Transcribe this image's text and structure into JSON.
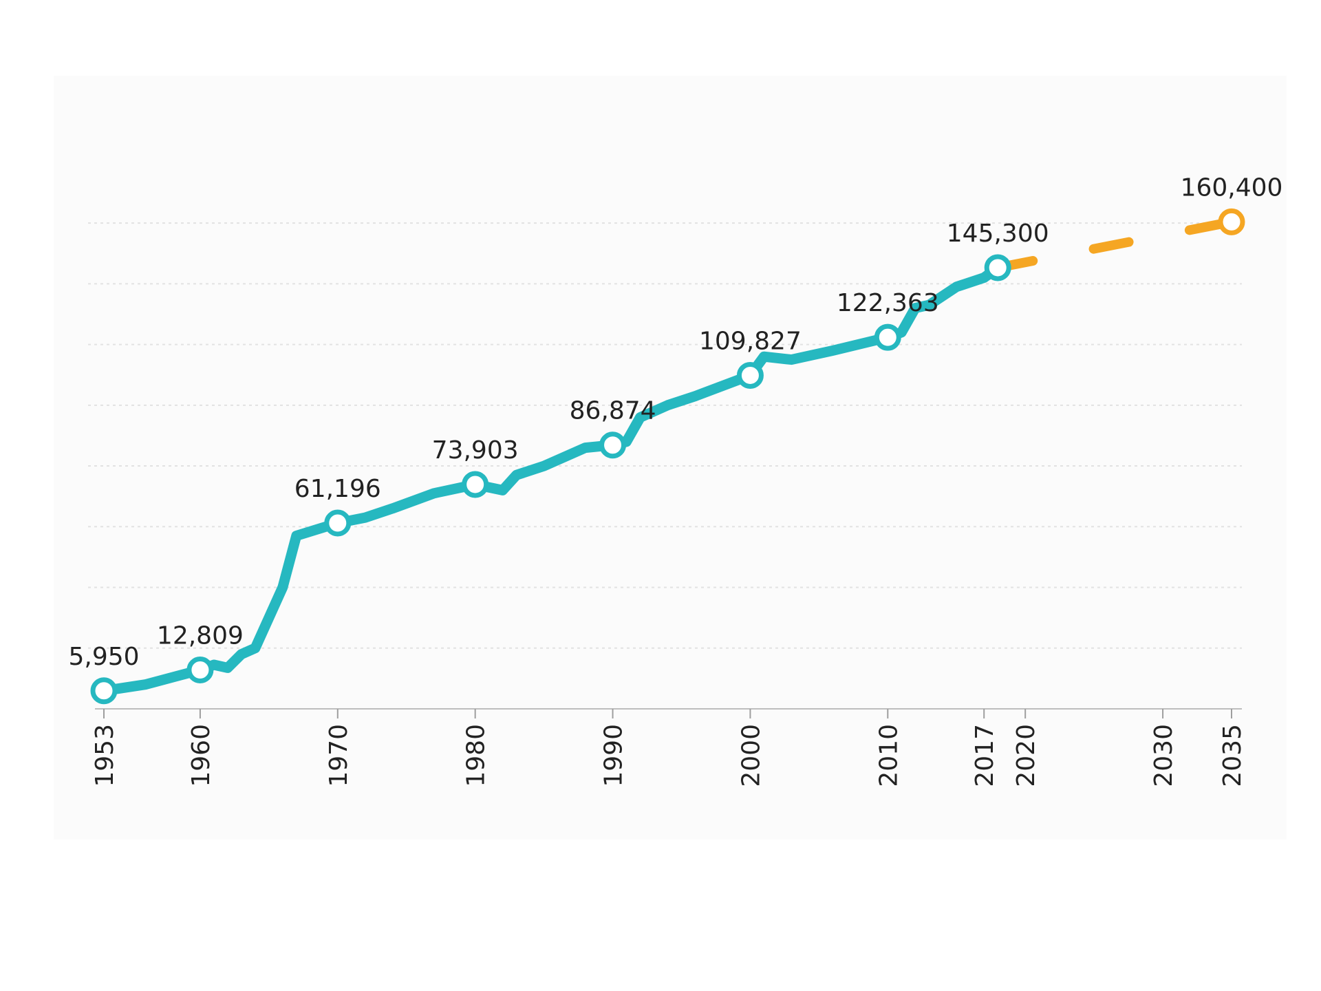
{
  "chart_data": {
    "type": "line",
    "title": "",
    "xlabel": "",
    "ylabel": "",
    "xlim": [
      1953,
      2035
    ],
    "ylim": [
      0,
      170000
    ],
    "grid": true,
    "x_ticks": [
      "1953",
      "1960",
      "1970",
      "1980",
      "1990",
      "2000",
      "2010",
      "2017",
      "2020",
      "2030",
      "2035"
    ],
    "series": [
      {
        "role": "actual",
        "color": "#26b8c0",
        "style": "solid",
        "points": [
          {
            "x": 1953,
            "y": 5950
          },
          {
            "x": 1956,
            "y": 8000
          },
          {
            "x": 1960,
            "y": 12809
          },
          {
            "x": 1961,
            "y": 14500
          },
          {
            "x": 1962,
            "y": 13500
          },
          {
            "x": 1963,
            "y": 18000
          },
          {
            "x": 1964,
            "y": 20000
          },
          {
            "x": 1966,
            "y": 40000
          },
          {
            "x": 1967,
            "y": 57000
          },
          {
            "x": 1970,
            "y": 61196
          },
          {
            "x": 1972,
            "y": 63000
          },
          {
            "x": 1974,
            "y": 66000
          },
          {
            "x": 1977,
            "y": 71000
          },
          {
            "x": 1980,
            "y": 73903
          },
          {
            "x": 1982,
            "y": 72000
          },
          {
            "x": 1983,
            "y": 77000
          },
          {
            "x": 1985,
            "y": 80000
          },
          {
            "x": 1988,
            "y": 86000
          },
          {
            "x": 1990,
            "y": 86874
          },
          {
            "x": 1991,
            "y": 88000
          },
          {
            "x": 1992,
            "y": 96000
          },
          {
            "x": 1994,
            "y": 100000
          },
          {
            "x": 1996,
            "y": 103000
          },
          {
            "x": 2000,
            "y": 109827
          },
          {
            "x": 2001,
            "y": 116000
          },
          {
            "x": 2003,
            "y": 115000
          },
          {
            "x": 2006,
            "y": 118000
          },
          {
            "x": 2010,
            "y": 122363
          },
          {
            "x": 2011,
            "y": 124000
          },
          {
            "x": 2012,
            "y": 132000
          },
          {
            "x": 2013,
            "y": 133000
          },
          {
            "x": 2015,
            "y": 139000
          },
          {
            "x": 2017,
            "y": 142000
          },
          {
            "x": 2018,
            "y": 145300
          }
        ]
      },
      {
        "role": "projection",
        "color": "#f5a623",
        "style": "dashed",
        "points": [
          {
            "x": 2018,
            "y": 145300
          },
          {
            "x": 2035,
            "y": 160400
          }
        ]
      }
    ],
    "markers": [
      {
        "x": 1953,
        "y": 5950,
        "label": "5,950",
        "series": "actual"
      },
      {
        "x": 1960,
        "y": 12809,
        "label": "12,809",
        "series": "actual"
      },
      {
        "x": 1970,
        "y": 61196,
        "label": "61,196",
        "series": "actual"
      },
      {
        "x": 1980,
        "y": 73903,
        "label": "73,903",
        "series": "actual"
      },
      {
        "x": 1990,
        "y": 86874,
        "label": "86,874",
        "series": "actual"
      },
      {
        "x": 2000,
        "y": 109827,
        "label": "109,827",
        "series": "actual"
      },
      {
        "x": 2010,
        "y": 122363,
        "label": "122,363",
        "series": "actual"
      },
      {
        "x": 2018,
        "y": 145300,
        "label": "145,300",
        "series": "actual"
      },
      {
        "x": 2035,
        "y": 160400,
        "label": "160,400",
        "series": "projection"
      }
    ]
  }
}
